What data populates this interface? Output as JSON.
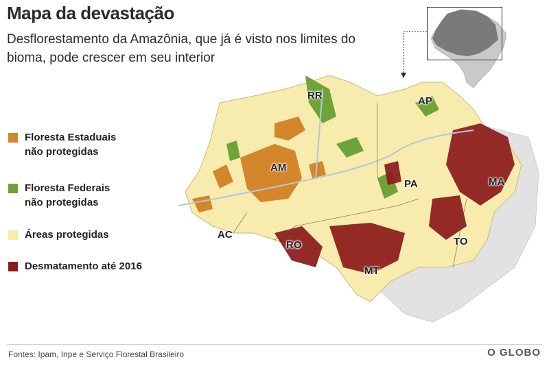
{
  "header": {
    "title": "Mapa da devastação",
    "subtitle": "Desflorestamento da Amazônia, que já é visto nos limites do bioma, pode crescer em seu interior"
  },
  "legend": [
    {
      "label": "Floresta Estaduais\nnão protegidas",
      "color": "#d4862b"
    },
    {
      "label": "Floresta Federais\nnão protegidas",
      "color": "#6fa33a"
    },
    {
      "label": " Áreas protegidas",
      "color": "#f7ecae"
    },
    {
      "label": " Desmatamento até 2016",
      "color": "#8b1a1a"
    }
  ],
  "states": [
    "RR",
    "AP",
    "AM",
    "PA",
    "MA",
    "AC",
    "RO",
    "TO",
    "MT"
  ],
  "colors": {
    "protected": "#f7ecae",
    "state_forest": "#d4862b",
    "federal_forest": "#6fa33a",
    "deforestation": "#8b1a1a",
    "neighbor": "#e2e2e2",
    "inset_brazil": "#c9c9c9",
    "inset_highlight": "#7a7a7a"
  },
  "footer": {
    "source": "Fontes: Ipam, Inpe e Serviço Florestal Brasileiro",
    "brand": "O GLOBO"
  }
}
